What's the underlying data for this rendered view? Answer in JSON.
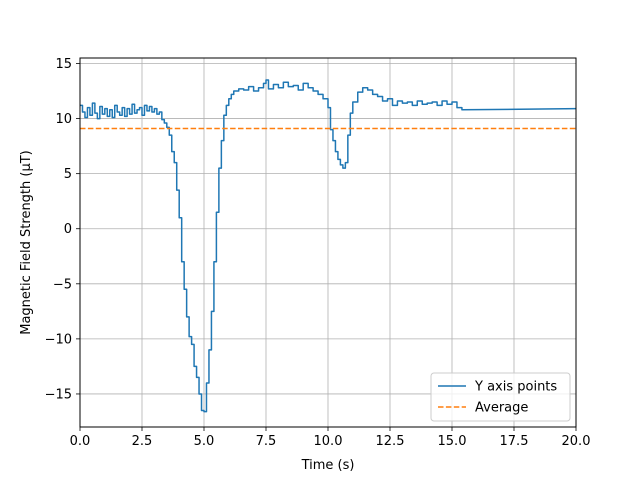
{
  "chart_data": {
    "type": "line",
    "title": "",
    "xlabel": "Time (s)",
    "ylabel": "Magnetic Field Strength (μT)",
    "xlim": [
      0,
      20
    ],
    "ylim": [
      -18,
      15.5
    ],
    "grid": true,
    "legend_position": "lower-right",
    "x_ticks": [
      "0.0",
      "2.5",
      "5.0",
      "7.5",
      "10.0",
      "12.5",
      "15.0",
      "17.5",
      "20.0"
    ],
    "y_ticks": [
      "−15",
      "−10",
      "−5",
      "0",
      "5",
      "10",
      "15"
    ],
    "series": [
      {
        "name": "Y axis points",
        "color": "#1f77b4",
        "style": "solid",
        "x": [
          0.0,
          0.1,
          0.2,
          0.3,
          0.4,
          0.5,
          0.6,
          0.7,
          0.8,
          0.9,
          1.0,
          1.1,
          1.2,
          1.3,
          1.4,
          1.5,
          1.6,
          1.7,
          1.8,
          1.9,
          2.0,
          2.1,
          2.2,
          2.3,
          2.4,
          2.5,
          2.6,
          2.7,
          2.8,
          2.9,
          3.0,
          3.1,
          3.2,
          3.3,
          3.4,
          3.5,
          3.6,
          3.7,
          3.8,
          3.9,
          4.0,
          4.1,
          4.2,
          4.3,
          4.4,
          4.5,
          4.6,
          4.7,
          4.8,
          4.9,
          5.0,
          5.1,
          5.2,
          5.3,
          5.4,
          5.5,
          5.6,
          5.7,
          5.8,
          5.9,
          6.0,
          6.1,
          6.2,
          6.4,
          6.6,
          6.8,
          7.0,
          7.2,
          7.4,
          7.5,
          7.6,
          7.8,
          8.0,
          8.2,
          8.4,
          8.6,
          8.8,
          9.0,
          9.2,
          9.4,
          9.6,
          9.8,
          10.0,
          10.1,
          10.2,
          10.3,
          10.4,
          10.5,
          10.6,
          10.7,
          10.8,
          10.9,
          11.0,
          11.2,
          11.4,
          11.6,
          11.8,
          12.0,
          12.2,
          12.4,
          12.6,
          12.8,
          13.0,
          13.2,
          13.4,
          13.6,
          13.8,
          14.0,
          14.2,
          14.4,
          14.6,
          14.8,
          15.0,
          15.2,
          15.4,
          20.0
        ],
        "y": [
          11.2,
          10.6,
          10.1,
          11.0,
          10.3,
          11.4,
          10.5,
          10.0,
          11.1,
          10.4,
          10.9,
          10.2,
          10.8,
          10.1,
          11.2,
          10.6,
          10.3,
          11.0,
          10.2,
          10.9,
          10.4,
          11.3,
          10.5,
          10.8,
          11.0,
          10.3,
          11.2,
          10.7,
          11.1,
          10.6,
          10.9,
          10.4,
          10.6,
          9.9,
          9.6,
          9.2,
          8.5,
          7.0,
          6.0,
          3.5,
          1.0,
          -3.0,
          -5.5,
          -8.0,
          -9.8,
          -10.5,
          -12.5,
          -13.5,
          -15.0,
          -16.5,
          -16.6,
          -14.0,
          -11.0,
          -7.5,
          -3.0,
          1.5,
          5.5,
          8.0,
          10.3,
          11.2,
          11.8,
          12.2,
          12.5,
          12.7,
          12.6,
          12.9,
          12.5,
          12.8,
          13.2,
          13.5,
          12.7,
          13.1,
          12.8,
          13.3,
          12.9,
          13.0,
          12.6,
          13.2,
          12.8,
          12.5,
          12.2,
          11.8,
          11.0,
          9.0,
          8.0,
          7.0,
          6.3,
          5.8,
          5.5,
          6.0,
          8.5,
          10.5,
          11.5,
          12.4,
          12.8,
          12.6,
          12.2,
          12.0,
          11.6,
          11.8,
          11.2,
          11.6,
          11.4,
          11.5,
          11.2,
          11.6,
          11.3,
          11.4,
          11.5,
          11.2,
          11.6,
          11.3,
          11.5,
          11.0,
          10.8,
          10.9
        ]
      },
      {
        "name": "Average",
        "color": "#ff7f0e",
        "style": "dashed",
        "x": [
          0,
          20
        ],
        "y": [
          9.1,
          9.1
        ]
      }
    ]
  }
}
